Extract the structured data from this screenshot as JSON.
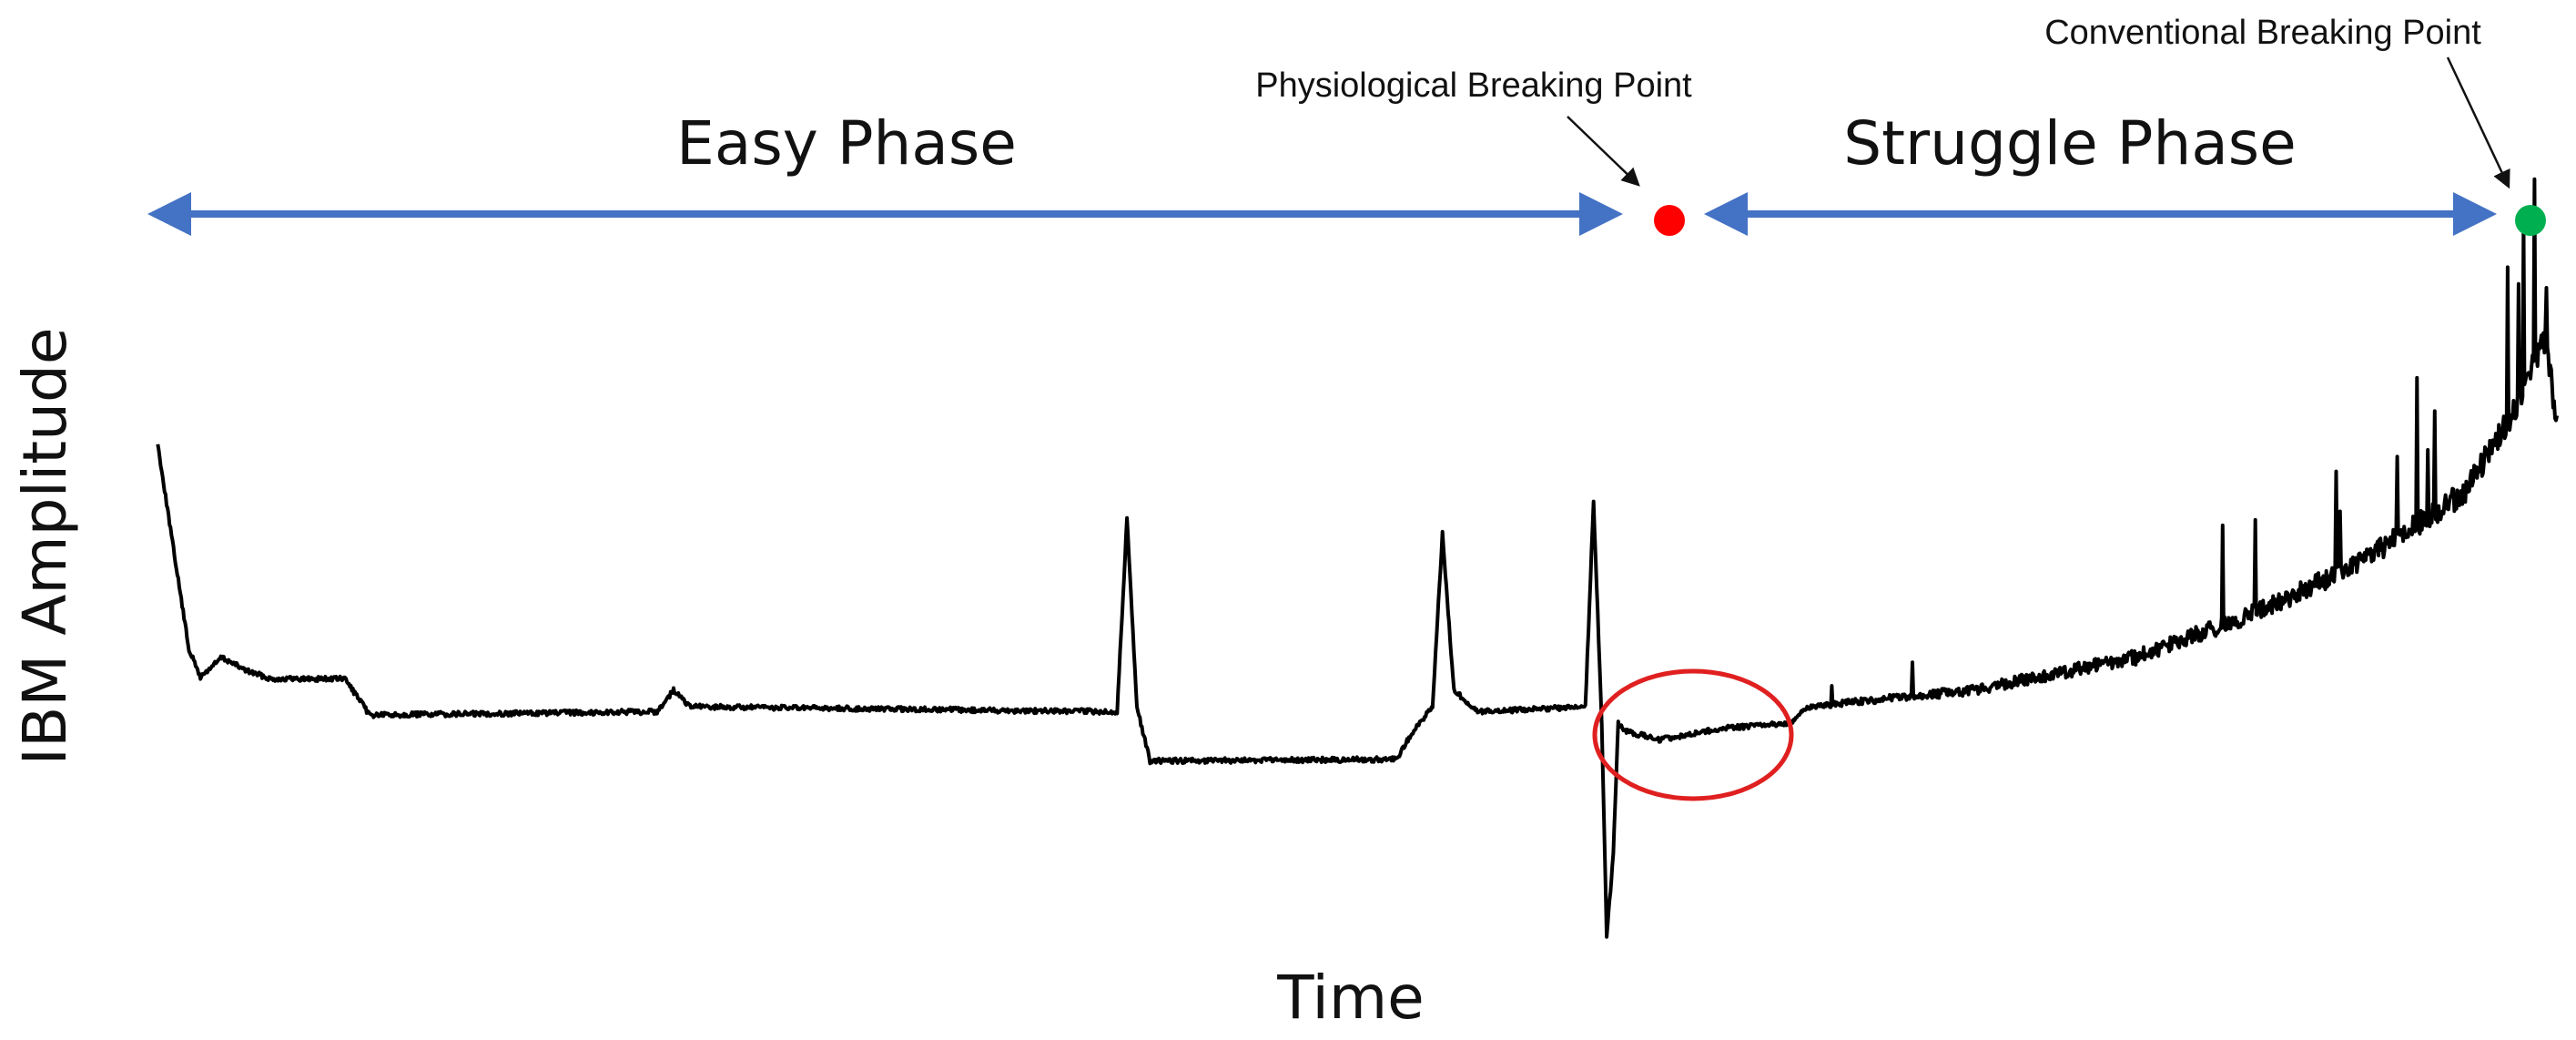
{
  "phases": {
    "easy": "Easy Phase",
    "struggle": "Struggle Phase"
  },
  "points": {
    "physiological": "Physiological Breaking Point",
    "conventional": "Conventional Breaking Point"
  },
  "axes": {
    "y_label": "IBM Amplitude",
    "x_label": "Time"
  }
}
